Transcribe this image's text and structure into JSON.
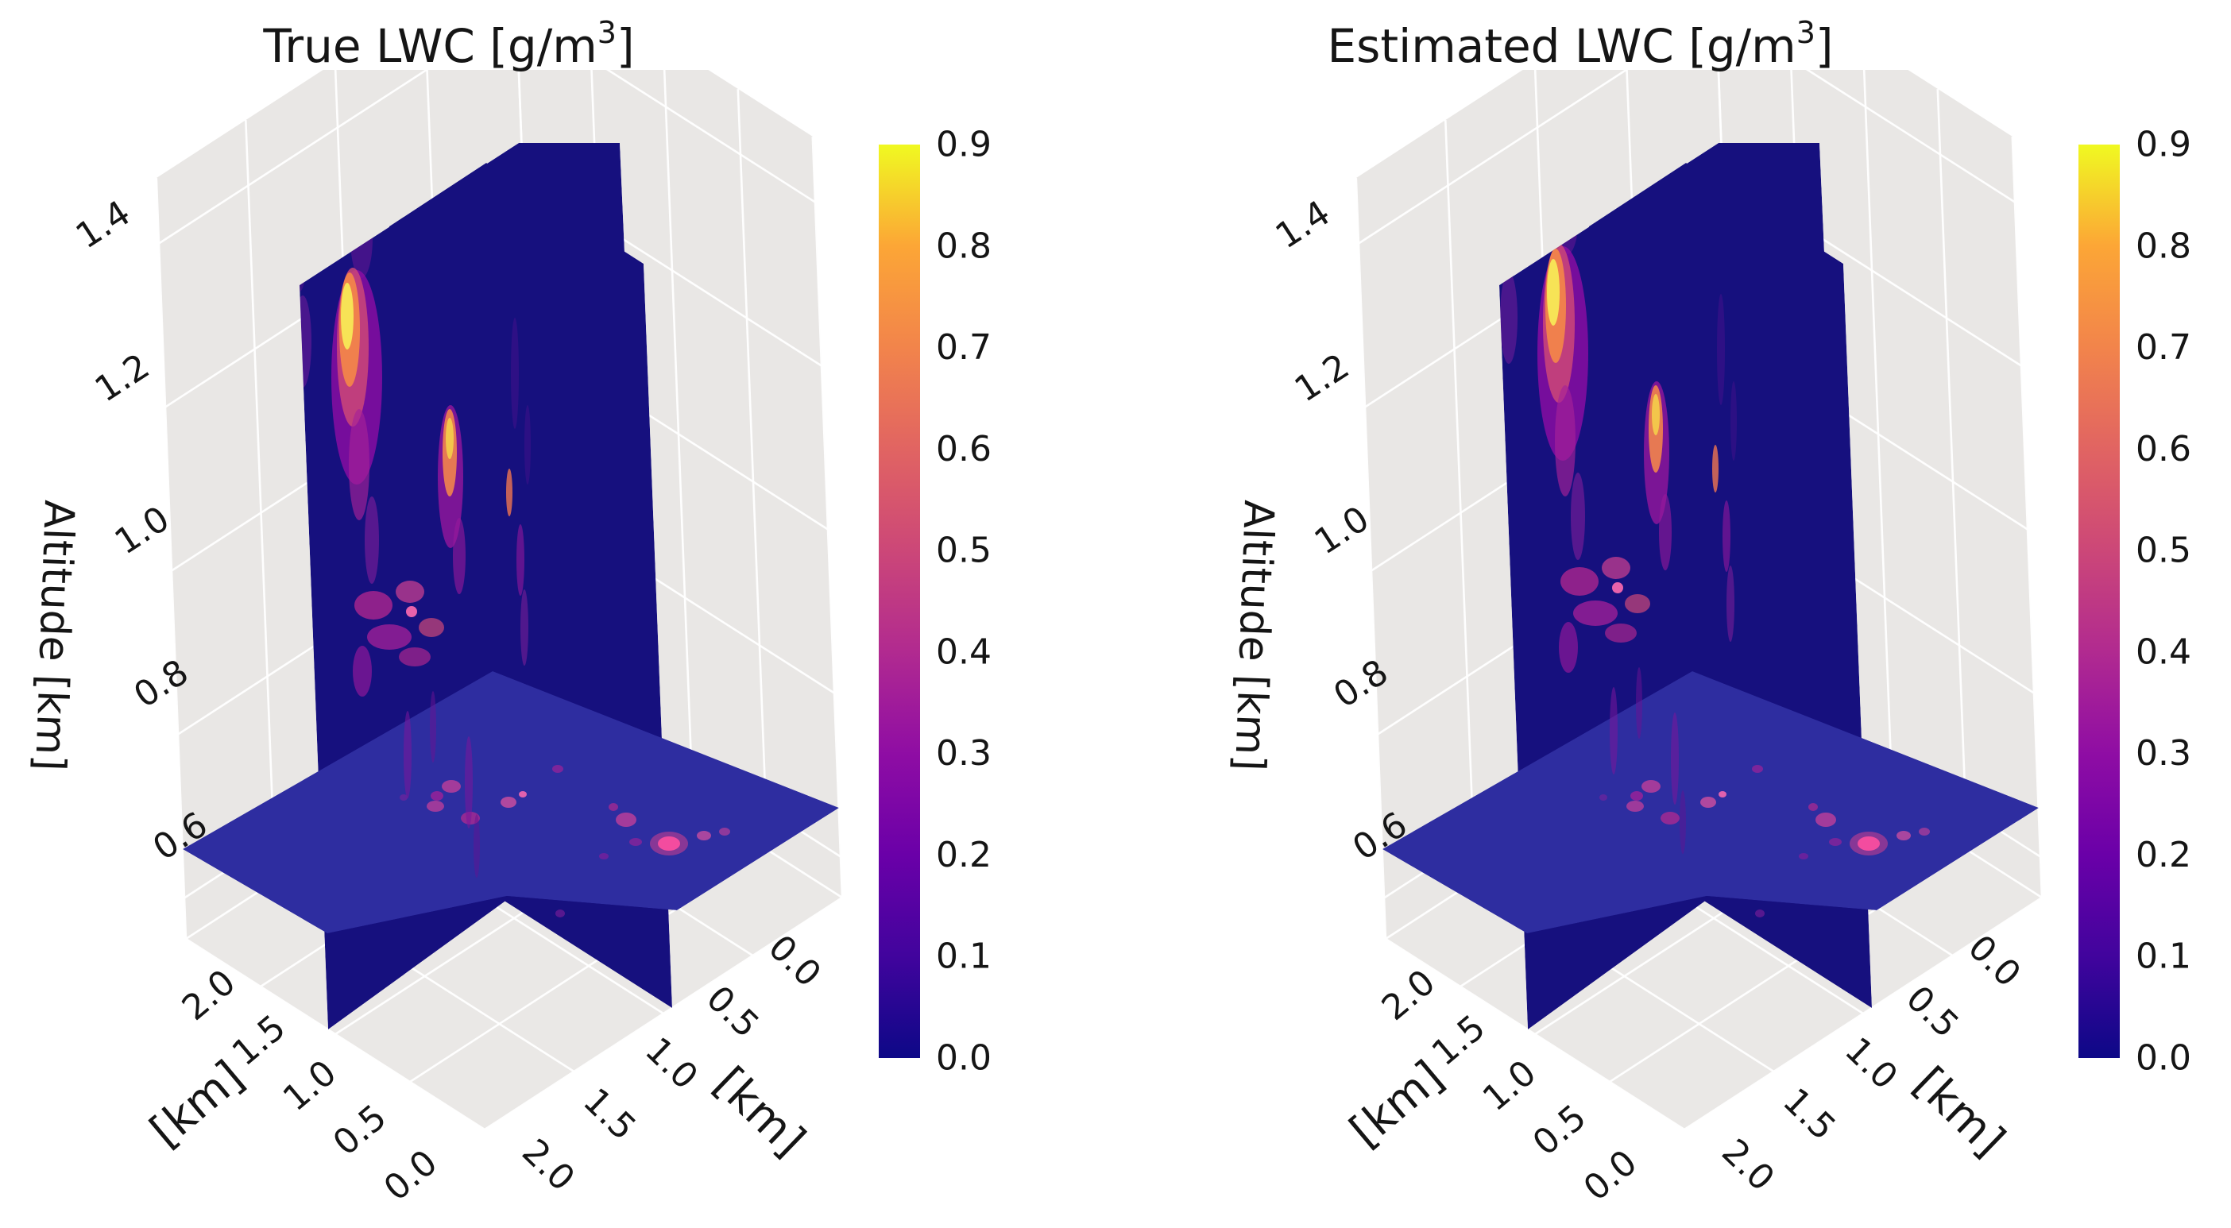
{
  "app": {
    "background": "#ffffff"
  },
  "chart_data": {
    "type": "3d-volume-slices",
    "description": "Two 3D slice plots of cloud liquid water content (LWC): true field vs estimated field. Each shows two vertical slice planes and one horizontal slice plane through a LWC volume, plasma colormap, value range 0 to 0.9 g/m3.",
    "panels": [
      {
        "title": "True LWC [g/m³]",
        "title_parts": {
          "pre": "True LWC [g/m",
          "sup": "3",
          "post": "]"
        },
        "title_x": 565,
        "offset_x": 0,
        "blur_add": 0,
        "plume_dx": 0,
        "plume_dy": 0
      },
      {
        "title": "Estimated LWC [g/m³]",
        "title_parts": {
          "pre": "Estimated LWC [g/m",
          "sup": "3",
          "post": "]"
        },
        "title_x": 479,
        "offset_x": 1510,
        "blur_add": 2,
        "plume_dx": 8,
        "plume_dy": -30
      }
    ],
    "axes": {
      "zlabel": "Altitude [km]",
      "xlabel": "[km]",
      "ylabel": "[km]",
      "z_ticks": [
        "1.4",
        "1.2",
        "1.0",
        "0.8",
        "0.6"
      ],
      "x_ticks": [
        "2.0",
        "1.5",
        "1.0",
        "0.5",
        "0.0"
      ],
      "y_ticks": [
        "0.0",
        "0.5",
        "1.0",
        "1.5",
        "2.0"
      ],
      "altitude_range_km": [
        0.6,
        1.4
      ],
      "horizontal_extent_km": [
        0.0,
        2.0
      ],
      "grid": true
    },
    "colorbar": {
      "ticks": [
        "0.9",
        "0.8",
        "0.7",
        "0.6",
        "0.5",
        "0.4",
        "0.3",
        "0.2",
        "0.1",
        "0.0"
      ],
      "vmin": 0.0,
      "vmax": 0.9,
      "colormap": "plasma",
      "stops": [
        "#0d0887",
        "#41049d",
        "#6a00a8",
        "#8f0da4",
        "#b12a90",
        "#cc4778",
        "#e16462",
        "#f2844b",
        "#fca636",
        "#f0f921"
      ]
    },
    "slices": {
      "x_slice_km": 1.05,
      "y_slice_km": 0.95,
      "z_slice_km": 0.74
    },
    "colors": {
      "plane_navy": "#16107e",
      "floor_slice_blue": "#2e2da0",
      "pane_gray": "#e9e7e5",
      "floor_gray": "#eae8e6",
      "grid_white": "#ffffff",
      "text": "#151515"
    },
    "plumes_main": [
      [
        381,
        430,
        11,
        58,
        "#7c1d9c",
        0.5,
        10
      ],
      [
        377,
        333,
        8,
        34,
        "#5f118f",
        0.45,
        10
      ],
      [
        455,
        300,
        14,
        50,
        "#7a169a",
        0.45,
        12
      ],
      [
        449,
        475,
        32,
        135,
        "#8f0da4",
        0.8,
        16
      ],
      [
        444,
        437,
        20,
        100,
        "#cc4778",
        0.85,
        12
      ],
      [
        440,
        415,
        13,
        72,
        "#f2844b",
        0.95,
        8
      ],
      [
        437,
        398,
        8,
        42,
        "#f7e356",
        1,
        6
      ],
      [
        452,
        585,
        13,
        70,
        "#a62098",
        0.65,
        10
      ],
      [
        468,
        680,
        9,
        55,
        "#8a1f9c",
        0.55,
        10
      ],
      [
        567,
        600,
        16,
        90,
        "#9c179e",
        0.75,
        12
      ],
      [
        566,
        570,
        9,
        55,
        "#f2844b",
        0.9,
        8
      ],
      [
        566,
        552,
        5,
        26,
        "#f6d44a",
        0.85,
        6
      ],
      [
        578,
        700,
        8,
        48,
        "#98199b",
        0.6,
        10
      ],
      [
        470,
        762,
        24,
        18,
        "#b5278f",
        0.75,
        10
      ],
      [
        516,
        745,
        18,
        14,
        "#c43e8f",
        0.75,
        10
      ],
      [
        490,
        802,
        28,
        16,
        "#a62098",
        0.75,
        10
      ],
      [
        543,
        790,
        16,
        12,
        "#cc4778",
        0.7,
        8
      ],
      [
        522,
        827,
        20,
        12,
        "#b5278f",
        0.65,
        10
      ],
      [
        518,
        770,
        7,
        7,
        "#ff6ab0",
        0.9,
        4
      ],
      [
        456,
        845,
        12,
        32,
        "#97179b",
        0.65,
        10
      ],
      [
        648,
        470,
        5,
        70,
        "#41108a",
        0.55,
        8
      ],
      [
        664,
        560,
        4,
        50,
        "#41108a",
        0.5,
        8
      ],
      [
        641,
        620,
        4,
        30,
        "#ef7550",
        0.8,
        6
      ],
      [
        655,
        705,
        5,
        45,
        "#9c179e",
        0.55,
        8
      ]
    ],
    "plumes_overlay": [
      [
        513,
        950,
        5,
        55,
        "#7a169a",
        0.55,
        8
      ],
      [
        545,
        915,
        4,
        45,
        "#6b1292",
        0.5,
        8
      ],
      [
        590,
        985,
        5,
        58,
        "#7a169a",
        0.55,
        8
      ],
      [
        600,
        1065,
        4,
        40,
        "#661090",
        0.45,
        8
      ],
      [
        660,
        790,
        5,
        48,
        "#8a1f9c",
        0.5,
        10
      ]
    ],
    "plumes_back": [
      [
        700,
        400,
        6,
        90,
        "#2d0b85",
        0.5,
        10
      ],
      [
        742,
        520,
        5,
        70,
        "#2d0b85",
        0.45,
        10
      ],
      [
        705,
        1150,
        6,
        5,
        "#8a1f9c",
        0.55,
        6
      ]
    ],
    "floor_spots": [
      [
        568,
        990,
        12,
        8,
        "#c13f9a",
        0.8,
        5
      ],
      [
        550,
        1002,
        8,
        6,
        "#a62098",
        0.75,
        5
      ],
      [
        548,
        1015,
        11,
        7,
        "#c13f9a",
        0.75,
        5
      ],
      [
        592,
        1030,
        12,
        8,
        "#b12a90",
        0.75,
        5
      ],
      [
        640,
        1010,
        10,
        7,
        "#d14f9f",
        0.8,
        5
      ],
      [
        658,
        1000,
        5,
        4,
        "#ff6ab0",
        0.85,
        4
      ],
      [
        702,
        968,
        7,
        5,
        "#a62098",
        0.65,
        5
      ],
      [
        788,
        1032,
        13,
        9,
        "#c13f9a",
        0.8,
        5
      ],
      [
        772,
        1016,
        6,
        5,
        "#b12a90",
        0.7,
        4
      ],
      [
        842,
        1062,
        24,
        15,
        "#c43e8f",
        0.6,
        8
      ],
      [
        842,
        1062,
        14,
        9,
        "#ff4fa0",
        0.9,
        5
      ],
      [
        886,
        1052,
        9,
        6,
        "#d14f9f",
        0.75,
        5
      ],
      [
        912,
        1047,
        7,
        5,
        "#c13f9a",
        0.65,
        4
      ],
      [
        800,
        1060,
        8,
        5,
        "#a62098",
        0.6,
        5
      ],
      [
        760,
        1078,
        6,
        4,
        "#98199b",
        0.55,
        4
      ],
      [
        508,
        1004,
        5,
        4,
        "#8a1f9c",
        0.5,
        4
      ]
    ]
  }
}
